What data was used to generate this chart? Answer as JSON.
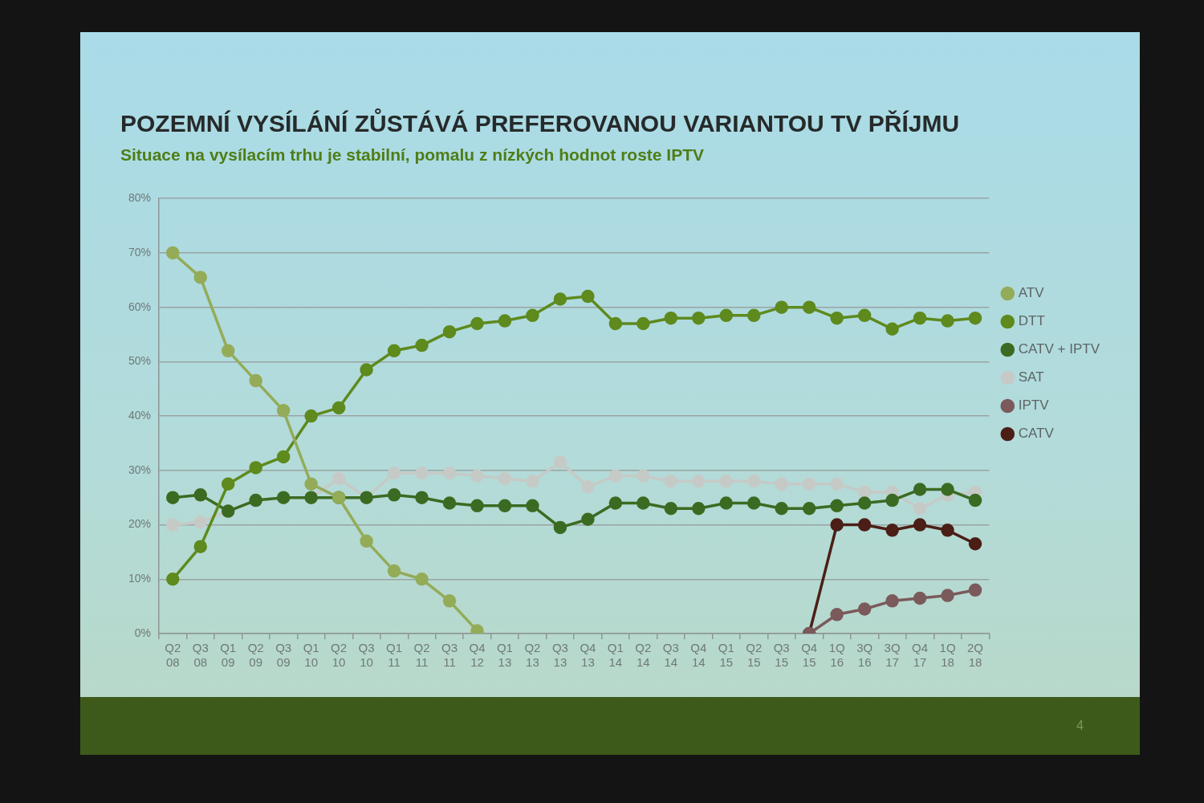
{
  "chart_data": {
    "type": "line",
    "title": "POZEMNÍ VYSÍLÁNÍ ZŮSTÁVÁ PREFEROVANOU VARIANTOU TV PŘÍJMU",
    "subtitle": "Situace na vysílacím trhu je stabilní, pomalu z nízkých hodnot roste IPTV",
    "categories": [
      "Q2 08",
      "Q3 08",
      "Q1 09",
      "Q2 09",
      "Q3 09",
      "Q1 10",
      "Q2 10",
      "Q3 10",
      "Q1 11",
      "Q2 11",
      "Q3 11",
      "Q4 12",
      "Q1 13",
      "Q2 13",
      "Q3 13",
      "Q4 13",
      "Q1 14",
      "Q2 14",
      "Q3 14",
      "Q4 14",
      "Q1 15",
      "Q2 15",
      "Q3 15",
      "Q4 15",
      "1Q 16",
      "3Q 16",
      "3Q 17",
      "Q4 17",
      "1Q 18",
      "2Q 18"
    ],
    "series": [
      {
        "name": "ATV",
        "color": "#94ab58",
        "values": [
          70,
          65.5,
          52,
          46.5,
          41,
          27.5,
          25,
          17,
          11.5,
          10,
          6,
          0.5,
          null,
          null,
          null,
          null,
          null,
          null,
          null,
          null,
          null,
          null,
          null,
          null,
          null,
          null,
          null,
          null,
          null,
          null
        ]
      },
      {
        "name": "DTT",
        "color": "#5e8a1e",
        "values": [
          10,
          16,
          27.5,
          30.5,
          32.5,
          40,
          41.5,
          48.5,
          52,
          53,
          55.5,
          57,
          57.5,
          58.5,
          61.5,
          62,
          57,
          57,
          58,
          58,
          58.5,
          58.5,
          60,
          60,
          58,
          58.5,
          56,
          58,
          57.5,
          58
        ]
      },
      {
        "name": "CATV + IPTV",
        "color": "#3b6b22",
        "values": [
          25,
          25.5,
          22.5,
          24.5,
          25,
          25,
          25,
          25,
          25.5,
          25,
          24,
          23.5,
          23.5,
          23.5,
          19.5,
          21,
          24,
          24,
          23,
          23,
          24,
          24,
          23,
          23,
          23.5,
          24,
          24.5,
          26.5,
          26.5,
          24.5
        ]
      },
      {
        "name": "SAT",
        "color": "#c6cac6",
        "values": [
          20,
          20.5,
          22.5,
          24.5,
          25,
          25,
          28.5,
          25,
          29.5,
          29.5,
          29.5,
          29,
          28.5,
          28,
          31.5,
          27,
          29,
          29,
          28,
          28,
          28,
          28,
          27.5,
          27.5,
          27.5,
          26,
          26,
          23,
          25.5,
          26
        ]
      },
      {
        "name": "IPTV",
        "color": "#7b5a5c",
        "values": [
          null,
          null,
          null,
          null,
          null,
          null,
          null,
          null,
          null,
          null,
          null,
          null,
          null,
          null,
          null,
          null,
          null,
          null,
          null,
          null,
          null,
          null,
          null,
          0,
          3.5,
          4.5,
          6,
          6.5,
          7,
          8
        ]
      },
      {
        "name": "CATV",
        "color": "#4b1f16",
        "values": [
          null,
          null,
          null,
          null,
          null,
          null,
          null,
          null,
          null,
          null,
          null,
          null,
          null,
          null,
          null,
          null,
          null,
          null,
          null,
          null,
          null,
          null,
          null,
          0,
          20,
          20,
          19,
          20,
          19,
          16.5
        ]
      }
    ],
    "ylim": [
      0,
      80
    ],
    "yticks": [
      {
        "value": 0,
        "label": "0%"
      },
      {
        "value": 10,
        "label": "10%"
      },
      {
        "value": 20,
        "label": "20%"
      },
      {
        "value": 30,
        "label": "30%"
      },
      {
        "value": 40,
        "label": "40%"
      },
      {
        "value": 50,
        "label": "50%"
      },
      {
        "value": 60,
        "label": "60%"
      },
      {
        "value": 70,
        "label": "70%"
      },
      {
        "value": 80,
        "label": "80%"
      }
    ],
    "grid": "y",
    "legend": "right",
    "marker": "circle",
    "line_style": "solid",
    "annotations": [
      "4"
    ]
  }
}
